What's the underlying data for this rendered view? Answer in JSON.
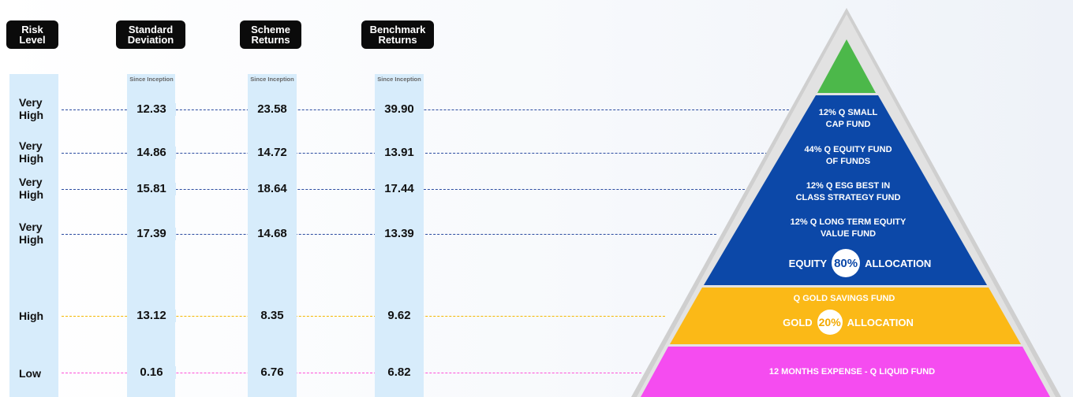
{
  "headers": {
    "risk": [
      "Risk",
      "Level"
    ],
    "std": [
      "Standard",
      "Deviation"
    ],
    "scheme": [
      "Scheme",
      "Returns"
    ],
    "bench": [
      "Benchmark",
      "Returns"
    ]
  },
  "since_inception": "Since Inception",
  "rows": [
    {
      "risk": [
        "Very",
        "High"
      ],
      "std": "12.33",
      "scheme": "23.58",
      "bench": "39.90"
    },
    {
      "risk": [
        "Very",
        "High"
      ],
      "std": "14.86",
      "scheme": "14.72",
      "bench": "13.91"
    },
    {
      "risk": [
        "Very",
        "High"
      ],
      "std": "15.81",
      "scheme": "18.64",
      "bench": "17.44"
    },
    {
      "risk": [
        "Very",
        "High"
      ],
      "std": "17.39",
      "scheme": "14.68",
      "bench": "13.39"
    },
    {
      "risk": [
        "High"
      ],
      "std": "13.12",
      "scheme": "8.35",
      "bench": "9.62"
    },
    {
      "risk": [
        "Low"
      ],
      "std": "0.16",
      "scheme": "6.76",
      "bench": "6.82"
    }
  ],
  "pyramid": {
    "equity_funds": [
      [
        "12% Q SMALL",
        "CAP FUND"
      ],
      [
        "44% Q EQUITY FUND",
        "OF FUNDS"
      ],
      [
        "12% Q ESG BEST IN",
        "CLASS STRATEGY FUND"
      ],
      [
        "12% Q LONG TERM EQUITY",
        "VALUE FUND"
      ]
    ],
    "equity_alloc": {
      "left": "EQUITY",
      "pct": "80%",
      "right": "ALLOCATION"
    },
    "gold_fund": "Q GOLD SAVINGS FUND",
    "gold_alloc": {
      "left": "GOLD",
      "pct": "20%",
      "right": "ALLOCATION"
    },
    "liquid": "12 MONTHS EXPENSE - Q LIQUID FUND"
  },
  "colors": {
    "blue": "#0c48a8",
    "gold": "#fbb917",
    "pink": "#f54cf0",
    "green": "#4cb84a",
    "gray": "#c8c8c8"
  }
}
